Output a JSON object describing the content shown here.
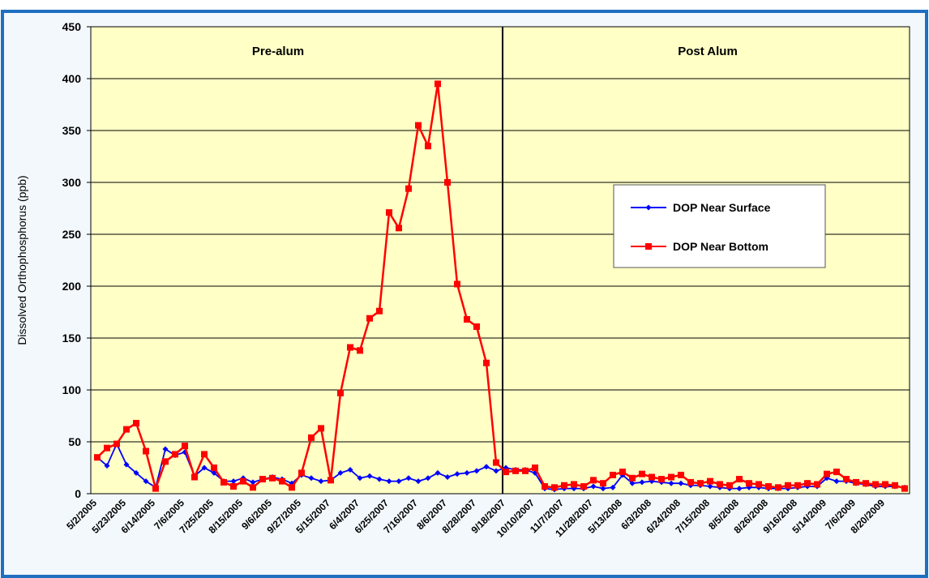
{
  "chart_data": {
    "type": "line",
    "y_label": "Dissolved Orthophosphorus (ppb)",
    "annotations": [
      "Pre-alum",
      "Post Alum"
    ],
    "categories": [
      "5/2/2005",
      null,
      null,
      "5/23/2005",
      null,
      null,
      "6/14/2005",
      null,
      null,
      "7/6/2005",
      null,
      null,
      "7/25/2005",
      null,
      null,
      "8/15/2005",
      null,
      null,
      "9/6/2005",
      null,
      null,
      "9/27/2005",
      null,
      null,
      "5/15/2007",
      null,
      null,
      "6/4/2007",
      null,
      null,
      "6/25/2007",
      null,
      null,
      "7/16/2007",
      null,
      null,
      "8/6/2007",
      null,
      null,
      "8/28/2007",
      null,
      null,
      "9/18/2007",
      null,
      null,
      "10/10/2007",
      null,
      null,
      "11/7/2007",
      null,
      null,
      "11/28/2007",
      null,
      null,
      "5/13/2008",
      null,
      null,
      "6/3/2008",
      null,
      null,
      "6/24/2008",
      null,
      null,
      "7/15/2008",
      null,
      null,
      "8/5/2008",
      null,
      null,
      "8/26/2008",
      null,
      null,
      "9/16/2008",
      null,
      null,
      "5/14/2009",
      null,
      null,
      "7/6/2009",
      null,
      null,
      "8/20/2009",
      null,
      null
    ],
    "series": [
      {
        "name": "DOP Near Surface",
        "color": "#0000ff",
        "marker": "diamond",
        "values": [
          35,
          27,
          48,
          28,
          20,
          12,
          6,
          43,
          37,
          40,
          17,
          25,
          20,
          12,
          12,
          15,
          11,
          14,
          16,
          14,
          10,
          18,
          15,
          12,
          13,
          20,
          23,
          15,
          17,
          14,
          12,
          12,
          15,
          12,
          15,
          20,
          16,
          19,
          20,
          22,
          26,
          22,
          25,
          23,
          23,
          20,
          5,
          4,
          5,
          5,
          5,
          7,
          5,
          6,
          18,
          10,
          11,
          12,
          11,
          10,
          10,
          8,
          8,
          7,
          6,
          5,
          5,
          6,
          6,
          5,
          5,
          5,
          6,
          7,
          7,
          15,
          12,
          12,
          10,
          9,
          7,
          7,
          7,
          6
        ]
      },
      {
        "name": "DOP Near Bottom",
        "color": "#ff0000",
        "marker": "square",
        "values": [
          35,
          44,
          48,
          62,
          68,
          41,
          5,
          31,
          38,
          46,
          16,
          38,
          25,
          11,
          7,
          12,
          6,
          14,
          15,
          12,
          6,
          20,
          54,
          63,
          13,
          97,
          141,
          138,
          169,
          176,
          271,
          256,
          294,
          355,
          335,
          395,
          300,
          202,
          168,
          161,
          126,
          30,
          21,
          22,
          22,
          25,
          7,
          6,
          8,
          9,
          7,
          13,
          10,
          18,
          21,
          15,
          19,
          16,
          14,
          16,
          18,
          11,
          10,
          12,
          9,
          8,
          14,
          10,
          9,
          7,
          6,
          8,
          8,
          10,
          9,
          19,
          21,
          14,
          11,
          10,
          9,
          9,
          8,
          5
        ]
      }
    ],
    "ylim": [
      0,
      450
    ],
    "yticks": [
      0,
      50,
      100,
      150,
      200,
      250,
      300,
      350,
      400,
      450
    ],
    "grid": true,
    "legend": "right"
  }
}
